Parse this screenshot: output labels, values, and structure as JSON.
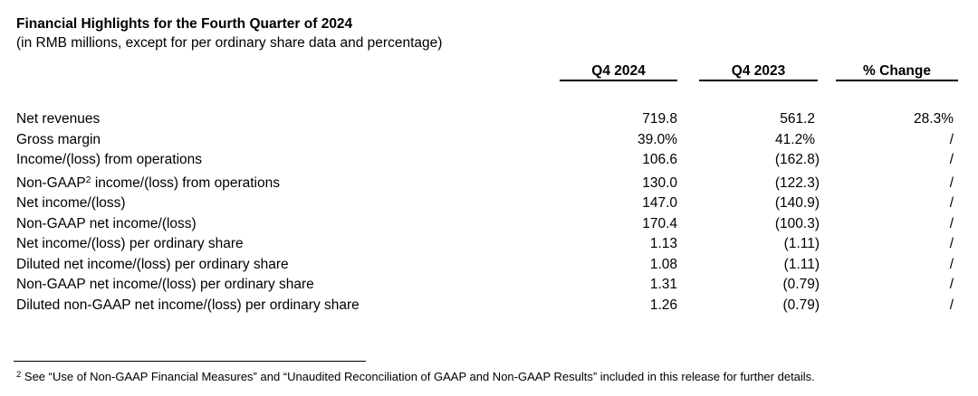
{
  "document": {
    "title": "Financial Highlights for the Fourth Quarter of 2024",
    "subtitle": "(in RMB millions, except for per ordinary share data and percentage)"
  },
  "table": {
    "columns": [
      "Q4 2024",
      "Q4 2023",
      "% Change"
    ],
    "rows": [
      {
        "label": "Net revenues",
        "q4_2024": "719.8",
        "q4_2023": "561.2",
        "pct_change": "28.3%"
      },
      {
        "label": "Gross margin",
        "q4_2024": "39.0%",
        "q4_2023": "41.2%",
        "pct_change": "/"
      },
      {
        "label": "Income/(loss) from operations",
        "q4_2024": "106.6",
        "q4_2023": "(162.8)",
        "pct_change": "/"
      },
      {
        "label_prefix": "Non-GAAP",
        "label_sup": "2",
        "label_suffix": " income/(loss) from operations",
        "q4_2024": "130.0",
        "q4_2023": "(122.3)",
        "pct_change": "/"
      },
      {
        "label": "Net income/(loss)",
        "q4_2024": "147.0",
        "q4_2023": "(140.9)",
        "pct_change": "/"
      },
      {
        "label": "Non-GAAP net income/(loss)",
        "q4_2024": "170.4",
        "q4_2023": "(100.3)",
        "pct_change": "/"
      },
      {
        "label": "Net income/(loss) per ordinary share",
        "q4_2024": "1.13",
        "q4_2023": "(1.11)",
        "pct_change": "/"
      },
      {
        "label": "Diluted net income/(loss) per ordinary share",
        "q4_2024": "1.08",
        "q4_2023": "(1.11)",
        "pct_change": "/"
      },
      {
        "label": "Non-GAAP net income/(loss) per ordinary share",
        "q4_2024": "1.31",
        "q4_2023": "(0.79)",
        "pct_change": "/"
      },
      {
        "label": "Diluted non-GAAP net income/(loss) per ordinary share",
        "q4_2024": "1.26",
        "q4_2023": "(0.79)",
        "pct_change": "/"
      }
    ]
  },
  "footnote": {
    "sup": "2",
    "text": " See “Use of Non-GAAP Financial Measures” and “Unaudited Reconciliation of GAAP and Non-GAAP Results” included in this release for further details."
  },
  "colors": {
    "text": "#000000",
    "background": "#ffffff",
    "rule": "#000000"
  }
}
